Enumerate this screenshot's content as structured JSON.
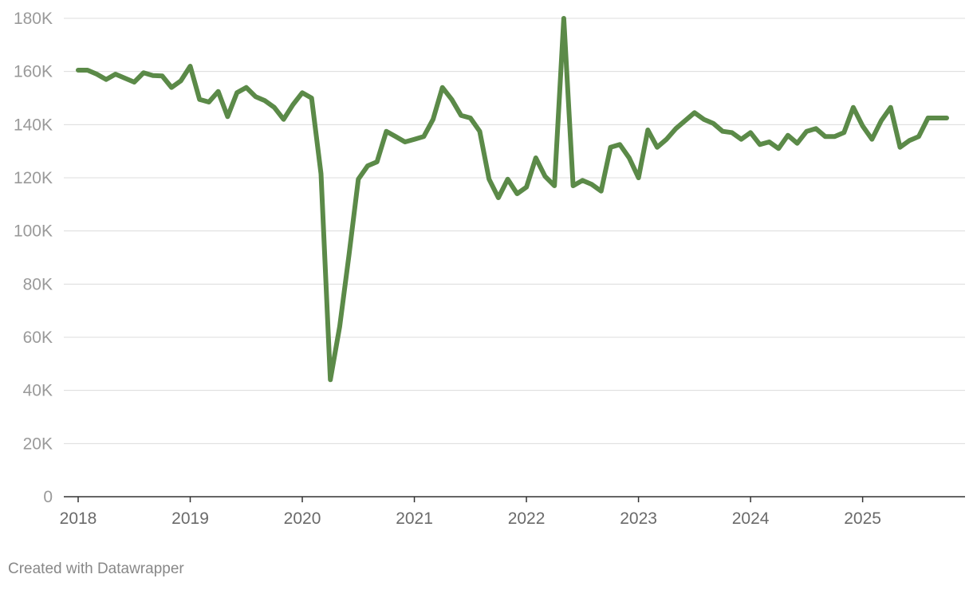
{
  "footer": "Created with Datawrapper",
  "chart_data": {
    "type": "line",
    "title": "",
    "xlabel": "",
    "ylabel": "",
    "x_tick_labels": [
      "2018",
      "2019",
      "2020",
      "2021",
      "2022",
      "2023",
      "2024",
      "2025"
    ],
    "y_tick_labels": [
      "0",
      "20K",
      "40K",
      "60K",
      "80K",
      "100K",
      "120K",
      "140K",
      "160K",
      "180K"
    ],
    "y_ticks": [
      0,
      20000,
      40000,
      60000,
      80000,
      100000,
      120000,
      140000,
      160000,
      180000
    ],
    "ylim": [
      0,
      180000
    ],
    "xlim": [
      "2018-01",
      "2025-12"
    ],
    "grid": true,
    "legend": "none",
    "colors": {
      "series": "#5b8a48"
    },
    "series": [
      {
        "x": [
          "2018-01",
          "2018-02",
          "2018-03",
          "2018-04",
          "2018-05",
          "2018-06",
          "2018-07",
          "2018-08",
          "2018-09",
          "2018-10",
          "2018-11",
          "2018-12",
          "2019-01",
          "2019-02",
          "2019-03",
          "2019-04",
          "2019-05",
          "2019-06",
          "2019-07",
          "2019-08",
          "2019-09",
          "2019-10",
          "2019-11",
          "2019-12",
          "2020-01",
          "2020-02",
          "2020-03",
          "2020-04",
          "2020-05",
          "2020-06",
          "2020-07",
          "2020-08",
          "2020-09",
          "2020-10",
          "2020-11",
          "2020-12",
          "2021-01",
          "2021-02",
          "2021-03",
          "2021-04",
          "2021-05",
          "2021-06",
          "2021-07",
          "2021-08",
          "2021-09",
          "2021-10",
          "2021-11",
          "2021-12",
          "2022-01",
          "2022-02",
          "2022-03",
          "2022-04",
          "2022-05",
          "2022-06",
          "2022-07",
          "2022-08",
          "2022-09",
          "2022-10",
          "2022-11",
          "2022-12",
          "2023-01",
          "2023-02",
          "2023-03",
          "2023-04",
          "2023-05",
          "2023-06",
          "2023-07",
          "2023-08",
          "2023-09",
          "2023-10",
          "2023-11",
          "2023-12",
          "2024-01",
          "2024-02",
          "2024-03",
          "2024-04",
          "2024-05",
          "2024-06",
          "2024-07",
          "2024-08",
          "2024-09",
          "2024-10",
          "2024-11",
          "2024-12",
          "2025-01",
          "2025-02",
          "2025-03",
          "2025-04",
          "2025-05",
          "2025-06",
          "2025-07",
          "2025-08",
          "2025-09",
          "2025-10"
        ],
        "values": [
          160500,
          160500,
          159000,
          157000,
          159000,
          157500,
          156000,
          159500,
          158500,
          158300,
          154000,
          156500,
          162000,
          149500,
          148500,
          152500,
          143000,
          152000,
          154000,
          150500,
          149000,
          146500,
          142000,
          147500,
          152000,
          150000,
          121500,
          44000,
          64000,
          91000,
          119500,
          124500,
          126000,
          137500,
          135500,
          133500,
          134500,
          135500,
          142000,
          154000,
          149500,
          143500,
          142500,
          137500,
          119500,
          112500,
          119500,
          114000,
          116500,
          127500,
          120500,
          117000,
          180000,
          117000,
          119000,
          117500,
          115000,
          131500,
          132500,
          127500,
          120000,
          138000,
          131500,
          134500,
          138500,
          141500,
          144500,
          142000,
          140500,
          137500,
          137000,
          134500,
          137000,
          132500,
          133500,
          131000,
          136000,
          133000,
          137500,
          138500,
          135500,
          135500,
          137000,
          146500,
          139500,
          134500,
          141500,
          146500,
          131500,
          134000,
          135500,
          142500,
          142500,
          142500
        ]
      }
    ]
  }
}
